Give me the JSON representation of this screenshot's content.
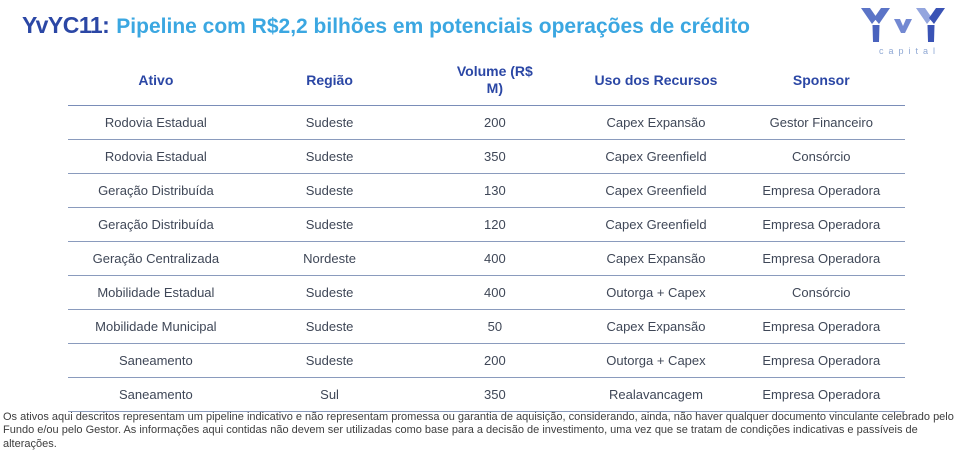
{
  "page": {
    "title_prefix": "YvYC11:",
    "title_text": "Pipeline com R$2,2 bilhões em potenciais operações de crédito"
  },
  "logo": {
    "wordmark": "YvY",
    "subtext": "capital"
  },
  "table": {
    "headers": [
      "Ativo",
      "Região",
      "Volume (R$ M)",
      "Uso dos Recursos",
      "Sponsor"
    ],
    "rows": [
      [
        "Rodovia Estadual",
        "Sudeste",
        "200",
        "Capex Expansão",
        "Gestor Financeiro"
      ],
      [
        "Rodovia Estadual",
        "Sudeste",
        "350",
        "Capex Greenfield",
        "Consórcio"
      ],
      [
        "Geração Distribuída",
        "Sudeste",
        "130",
        "Capex Greenfield",
        "Empresa Operadora"
      ],
      [
        "Geração Distribuída",
        "Sudeste",
        "120",
        "Capex Greenfield",
        "Empresa Operadora"
      ],
      [
        "Geração Centralizada",
        "Nordeste",
        "400",
        "Capex Expansão",
        "Empresa Operadora"
      ],
      [
        "Mobilidade Estadual",
        "Sudeste",
        "400",
        "Outorga + Capex",
        "Consórcio"
      ],
      [
        "Mobilidade Municipal",
        "Sudeste",
        "50",
        "Capex Expansão",
        "Empresa Operadora"
      ],
      [
        "Saneamento",
        "Sudeste",
        "200",
        "Outorga + Capex",
        "Empresa Operadora"
      ],
      [
        "Saneamento",
        "Sul",
        "350",
        "Realavancagem",
        "Empresa Operadora"
      ]
    ]
  },
  "footer": {
    "disclaimer": "Os ativos aqui descritos representam um pipeline indicativo e não representam promessa ou garantia de aquisição, considerando, ainda, não haver qualquer documento vinculante celebrado pelo Fundo e/ou pelo Gestor. As informações aqui contidas não devem ser utilizadas como base para a decisão de investimento, uma vez que se tratam de condições indicativas e passíveis de alterações."
  },
  "colors": {
    "title_dark_blue": "#2b47a5",
    "title_light_blue": "#3ba7e1",
    "header_text": "#2b47a5",
    "cell_text": "#3f4757",
    "row_line": "#8a9bbd",
    "logo_blue_medium": "#5b74c7",
    "logo_blue_light": "#7389d2",
    "logo_blue_dark": "#3a53b5",
    "logo_subtext": "#8fa8d4"
  }
}
